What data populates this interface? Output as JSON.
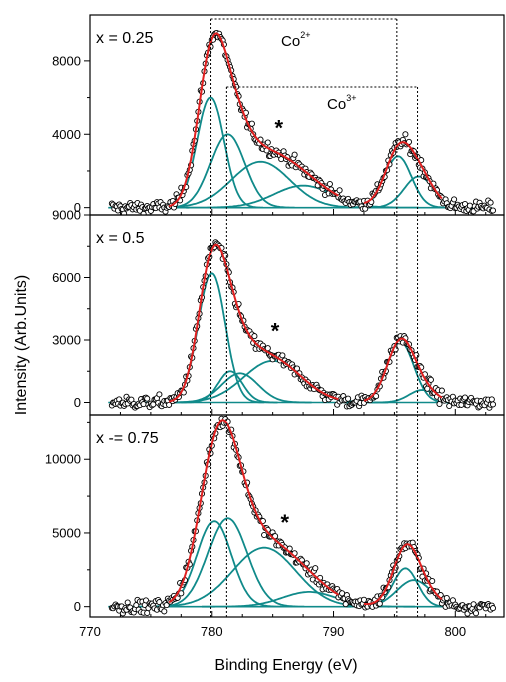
{
  "chart_data": {
    "type": "line",
    "xlabel": "Binding Energy (eV)",
    "ylabel": "Intensity (Arb.Units)",
    "xlim": [
      770,
      804
    ],
    "x_ticks": [
      770,
      780,
      790,
      800
    ],
    "grid": false,
    "colors": {
      "fit": "#e02020",
      "component": "#108a8a",
      "data_marker": "#000000",
      "guide": "#000000"
    },
    "annotations": {
      "co2": "Co",
      "co2_sup": "2+",
      "co3": "Co",
      "co3_sup": "3+",
      "satellite": "*"
    },
    "guide_lines_x": [
      779.9,
      781.2,
      795.2,
      796.9
    ],
    "panels": [
      {
        "label": "x = 0.25",
        "ylim": [
          -400,
          10500
        ],
        "y_ticks": [
          0,
          4000,
          8000
        ],
        "y_ticks_minor": [
          2000,
          6000
        ],
        "baseline": 0,
        "star_x": 785.5,
        "components": [
          {
            "center": 779.9,
            "height": 6000,
            "width": 1.1
          },
          {
            "center": 781.3,
            "height": 4000,
            "width": 1.4
          },
          {
            "center": 784.0,
            "height": 2500,
            "width": 2.4
          },
          {
            "center": 787.5,
            "height": 1200,
            "width": 2.4
          },
          {
            "center": 795.3,
            "height": 2800,
            "width": 1.1
          },
          {
            "center": 797.0,
            "height": 1700,
            "width": 1.2
          }
        ]
      },
      {
        "label": "x = 0.5",
        "ylim": [
          -600,
          9000
        ],
        "y_ticks": [
          0,
          3000,
          6000,
          9000
        ],
        "y_ticks_minor": [
          1500,
          4500,
          7500
        ],
        "baseline": 0,
        "star_x": 785.2,
        "components": [
          {
            "center": 780.0,
            "height": 6200,
            "width": 1.1
          },
          {
            "center": 781.5,
            "height": 1500,
            "width": 1.0
          },
          {
            "center": 782.3,
            "height": 1400,
            "width": 1.5
          },
          {
            "center": 785.0,
            "height": 2000,
            "width": 2.4
          },
          {
            "center": 795.5,
            "height": 2900,
            "width": 1.1
          },
          {
            "center": 797.3,
            "height": 600,
            "width": 1.1
          }
        ]
      },
      {
        "label": "x -= 0.75",
        "ylim": [
          -700,
          13000
        ],
        "y_ticks": [
          0,
          5000,
          10000
        ],
        "y_ticks_minor": [
          2500,
          7500,
          12500
        ],
        "baseline": 0,
        "star_x": 786.0,
        "components": [
          {
            "center": 780.2,
            "height": 5800,
            "width": 1.4
          },
          {
            "center": 781.3,
            "height": 6000,
            "width": 1.6
          },
          {
            "center": 784.3,
            "height": 4000,
            "width": 2.6
          },
          {
            "center": 788.0,
            "height": 1000,
            "width": 2.2
          },
          {
            "center": 795.9,
            "height": 2600,
            "width": 1.0
          },
          {
            "center": 796.6,
            "height": 1800,
            "width": 1.4
          }
        ]
      }
    ]
  }
}
